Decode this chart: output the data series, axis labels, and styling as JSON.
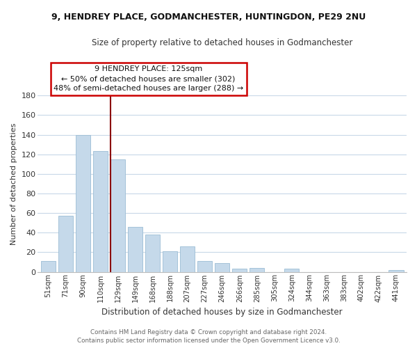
{
  "title_line1": "9, HENDREY PLACE, GODMANCHESTER, HUNTINGDON, PE29 2NU",
  "title_line2": "Size of property relative to detached houses in Godmanchester",
  "xlabel": "Distribution of detached houses by size in Godmanchester",
  "ylabel": "Number of detached properties",
  "categories": [
    "51sqm",
    "71sqm",
    "90sqm",
    "110sqm",
    "129sqm",
    "149sqm",
    "168sqm",
    "188sqm",
    "207sqm",
    "227sqm",
    "246sqm",
    "266sqm",
    "285sqm",
    "305sqm",
    "324sqm",
    "344sqm",
    "363sqm",
    "383sqm",
    "402sqm",
    "422sqm",
    "441sqm"
  ],
  "values": [
    11,
    57,
    140,
    123,
    115,
    46,
    38,
    21,
    26,
    11,
    9,
    3,
    4,
    0,
    3,
    0,
    0,
    0,
    0,
    0,
    2
  ],
  "highlight_index": 4,
  "bar_color": "#c5d9ea",
  "bar_edge_color": "#9bbdd4",
  "highlight_line_color": "#8b0000",
  "ylim": [
    0,
    180
  ],
  "yticks": [
    0,
    20,
    40,
    60,
    80,
    100,
    120,
    140,
    160,
    180
  ],
  "annotation_title": "9 HENDREY PLACE: 125sqm",
  "annotation_line1": "← 50% of detached houses are smaller (302)",
  "annotation_line2": "48% of semi-detached houses are larger (288) →",
  "annotation_box_color": "#ffffff",
  "annotation_box_edge": "#cc0000",
  "footer_line1": "Contains HM Land Registry data © Crown copyright and database right 2024.",
  "footer_line2": "Contains public sector information licensed under the Open Government Licence v3.0.",
  "background_color": "#ffffff",
  "grid_color": "#c8d8e8"
}
